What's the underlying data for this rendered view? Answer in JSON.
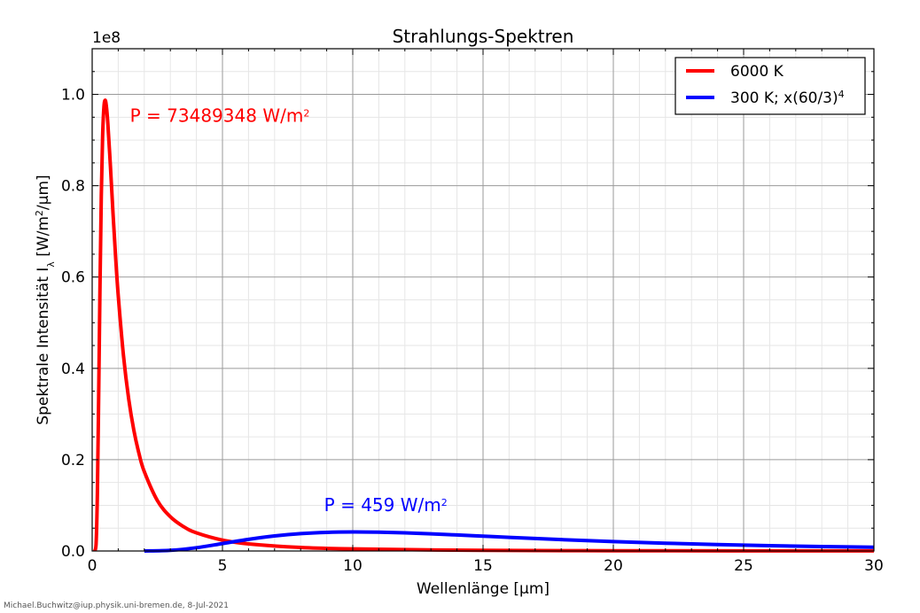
{
  "chart_data": {
    "type": "line",
    "title": "Strahlungs-Spektren",
    "xlabel": "Wellenlänge [µm]",
    "ylabel": {
      "prefix": "Spektrale Intensität I",
      "subscript": "λ",
      "unit_pre": " [W/m",
      "unit_sup": "2",
      "unit_post": "/µm]"
    },
    "y_offset_label": "1e8",
    "xlim": [
      0,
      30
    ],
    "ylim": [
      0,
      1.1
    ],
    "xticks": [
      0,
      5,
      10,
      15,
      20,
      25,
      30
    ],
    "xtick_labels": [
      "0",
      "5",
      "10",
      "15",
      "20",
      "25",
      "30"
    ],
    "yticks": [
      0.0,
      0.2,
      0.4,
      0.6,
      0.8,
      1.0
    ],
    "ytick_labels": [
      "0.0",
      "0.2",
      "0.4",
      "0.6",
      "0.8",
      "1.0"
    ],
    "grid": true,
    "legend_position": "top-right",
    "series": [
      {
        "name": "6000 K",
        "color": "#ff0000",
        "x": [
          0.1,
          0.15,
          0.2,
          0.25,
          0.3,
          0.35,
          0.4,
          0.45,
          0.5,
          0.55,
          0.6,
          0.7,
          0.8,
          0.9,
          1.0,
          1.2,
          1.4,
          1.6,
          1.8,
          2.0,
          2.5,
          3.0,
          3.5,
          4.0,
          5.0,
          6.0,
          8.0,
          10.0,
          15.0,
          20.0,
          25.0,
          30.0
        ],
        "y": [
          0.0001,
          0.0151,
          0.1275,
          0.343,
          0.5804,
          0.7778,
          0.9071,
          0.9716,
          0.9873,
          0.9713,
          0.9373,
          0.8429,
          0.7392,
          0.6432,
          0.5596,
          0.4285,
          0.3334,
          0.2641,
          0.2126,
          0.1738,
          0.1105,
          0.075,
          0.0535,
          0.0397,
          0.0238,
          0.0156,
          0.0077,
          0.0045,
          0.0014,
          0.0006,
          0.0003,
          0.0002
        ]
      },
      {
        "name": "300 K; x(60/3)",
        "name_sup": "4",
        "color": "#0000ff",
        "x": [
          2.0,
          3.0,
          4.0,
          5.0,
          6.0,
          7.0,
          8.0,
          9.0,
          10.0,
          11.0,
          12.0,
          13.0,
          14.0,
          15.0,
          16.0,
          18.0,
          20.0,
          22.0,
          24.0,
          26.0,
          28.0,
          30.0
        ],
        "y": [
          3e-05,
          0.0014,
          0.00716,
          0.01627,
          0.0255,
          0.03297,
          0.03802,
          0.04079,
          0.04168,
          0.04115,
          0.03966,
          0.03754,
          0.03507,
          0.03246,
          0.02983,
          0.02491,
          0.02062,
          0.01703,
          0.0141,
          0.01171,
          0.00977,
          0.00819
        ]
      }
    ],
    "annotations": [
      {
        "series": 0,
        "text": "P = 73489348 W/m",
        "sup": "2",
        "x": 1.45,
        "y": 0.94,
        "color": "#ff0000"
      },
      {
        "series": 1,
        "text": "P = 459 W/m",
        "sup": "2",
        "x": 8.9,
        "y": 0.087,
        "color": "#0000ff"
      }
    ]
  },
  "footer": {
    "credit": "Michael.Buchwitz@iup.physik.uni-bremen.de, 8-Jul-2021"
  }
}
